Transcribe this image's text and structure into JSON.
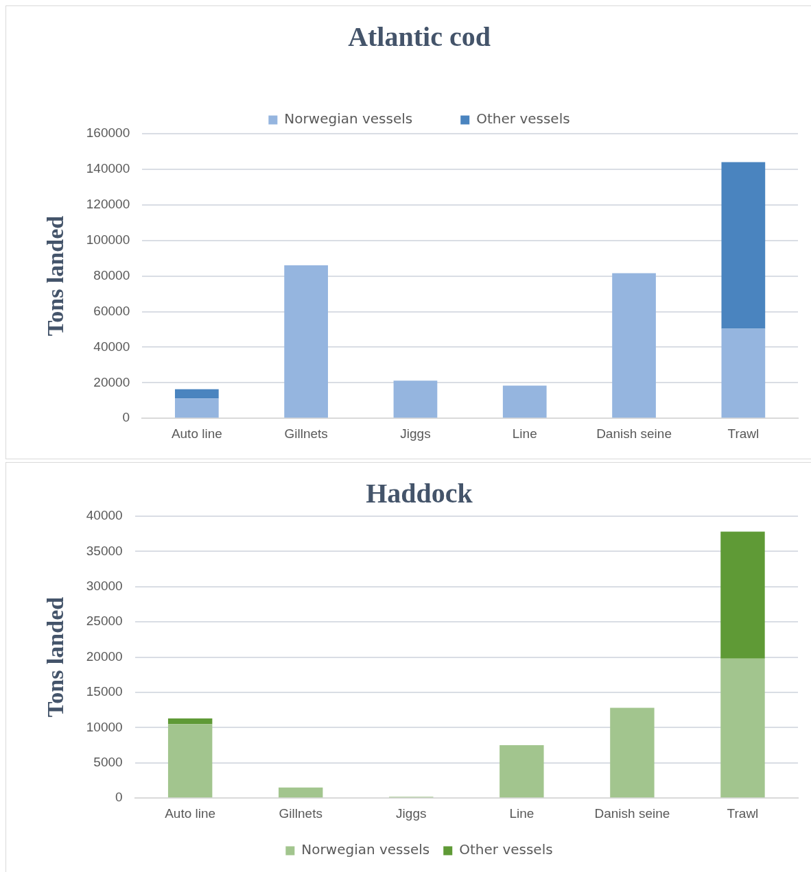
{
  "chart_data": [
    {
      "type": "bar",
      "title": "Atlantic cod",
      "ylabel": "Tons landed",
      "categories": [
        "Auto line",
        "Gillnets",
        "Jiggs",
        "Line",
        "Danish seine",
        "Trawl"
      ],
      "stacked": true,
      "legend": "top",
      "grid": "y",
      "ylim": [
        0,
        160000
      ],
      "yticks": [
        0,
        20000,
        40000,
        60000,
        80000,
        100000,
        120000,
        140000,
        160000
      ],
      "series": [
        {
          "name": "Norwegian vessels",
          "color": "#95b5df",
          "values": [
            11200,
            86000,
            21200,
            18400,
            81600,
            50400
          ]
        },
        {
          "name": "Other vessels",
          "color": "#4a84bf",
          "values": [
            5200,
            null,
            null,
            null,
            null,
            93600
          ]
        }
      ]
    },
    {
      "type": "bar",
      "title": "Haddock",
      "ylabel": "Tons landed",
      "categories": [
        "Auto line",
        "Gillnets",
        "Jiggs",
        "Line",
        "Danish seine",
        "Trawl"
      ],
      "stacked": true,
      "legend": "bottom",
      "grid": "y",
      "ylim": [
        0,
        40000
      ],
      "yticks": [
        0,
        5000,
        10000,
        15000,
        20000,
        25000,
        30000,
        35000,
        40000
      ],
      "series": [
        {
          "name": "Norwegian vessels",
          "color": "#a2c58e",
          "values": [
            10500,
            1500,
            200,
            7500,
            12800,
            19800
          ]
        },
        {
          "name": "Other vessels",
          "color": "#5f9a36",
          "values": [
            800,
            null,
            null,
            null,
            null,
            18000
          ]
        }
      ]
    }
  ]
}
